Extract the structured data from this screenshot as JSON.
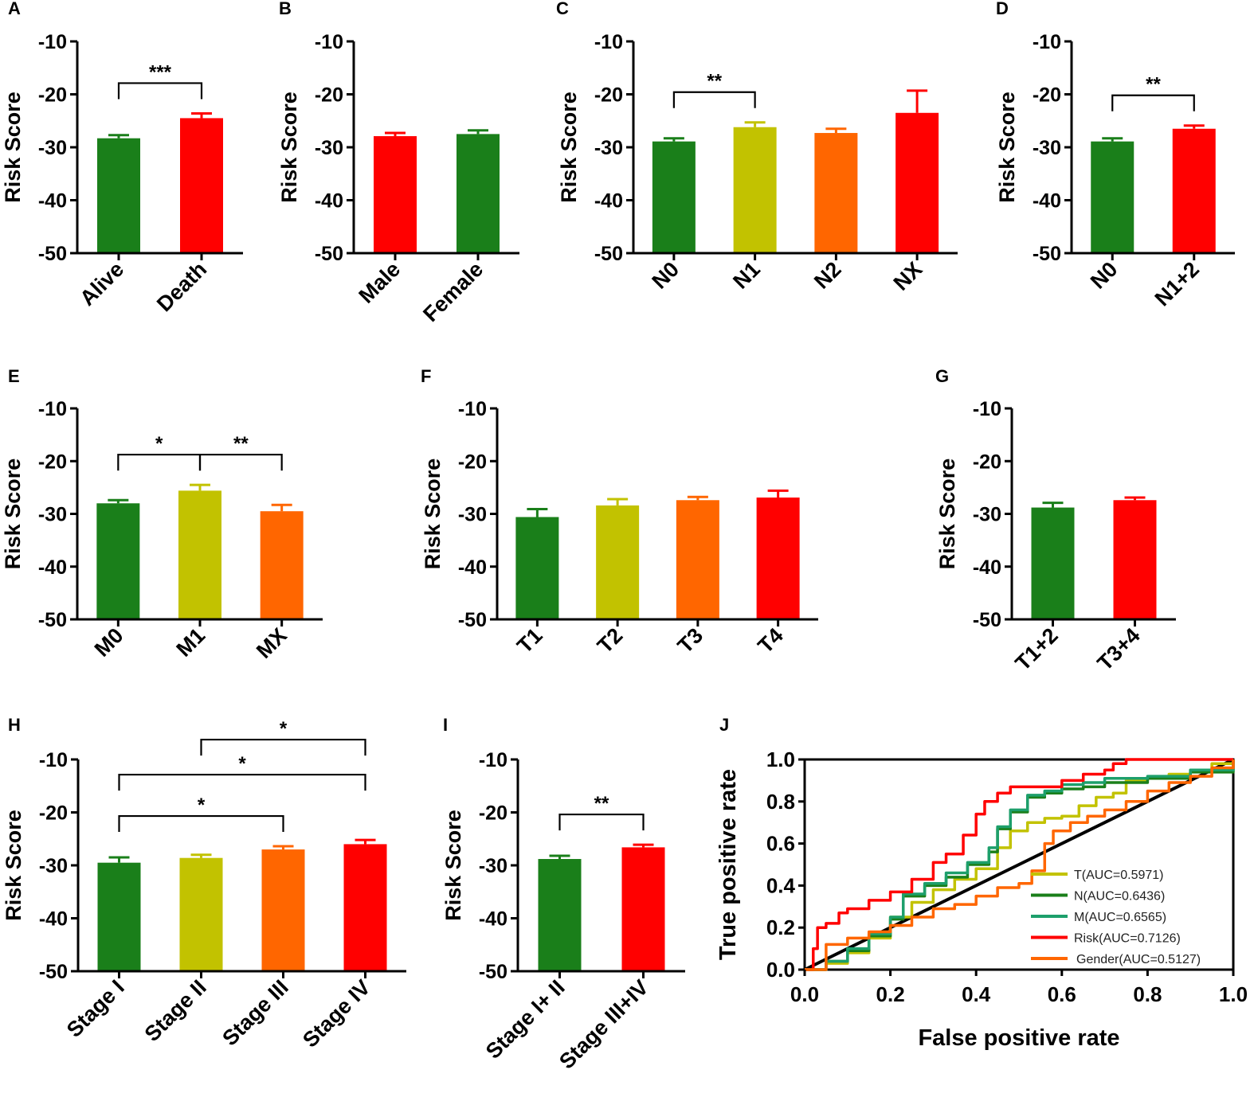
{
  "figure": {
    "panel_count": 10
  },
  "colors": {
    "green": "#1a7f1a",
    "olive": "#c2c200",
    "orange": "#ff6600",
    "red": "#ff0000",
    "teal": "#1d9f6b",
    "diag": "#000000"
  },
  "chart_data": [
    {
      "id": "A",
      "panel_label": "A",
      "type": "bar",
      "ylabel": "Risk Score",
      "ylim": [
        -50,
        -10
      ],
      "yticks": [
        -10,
        -20,
        -30,
        -40,
        -50
      ],
      "categories": [
        "Alive",
        "Death"
      ],
      "values": [
        -28.3,
        -24.5
      ],
      "errors": [
        0.6,
        0.9
      ],
      "bar_colors": [
        "#1a7f1a",
        "#ff0000"
      ],
      "comparisons": [
        {
          "from": 0,
          "to": 1,
          "label": "***",
          "level": 0
        }
      ]
    },
    {
      "id": "B",
      "panel_label": "B",
      "type": "bar",
      "ylabel": "Risk Score",
      "ylim": [
        -50,
        -10
      ],
      "yticks": [
        -10,
        -20,
        -30,
        -40,
        -50
      ],
      "categories": [
        "Male",
        "Female"
      ],
      "values": [
        -27.9,
        -27.5
      ],
      "errors": [
        0.6,
        0.7
      ],
      "bar_colors": [
        "#ff0000",
        "#1a7f1a"
      ],
      "comparisons": []
    },
    {
      "id": "C",
      "panel_label": "C",
      "type": "bar",
      "ylabel": "Risk Score",
      "ylim": [
        -50,
        -10
      ],
      "yticks": [
        -10,
        -20,
        -30,
        -40,
        -50
      ],
      "categories": [
        "N0",
        "N1",
        "N2",
        "NX"
      ],
      "values": [
        -28.9,
        -26.2,
        -27.3,
        -23.5
      ],
      "errors": [
        0.6,
        0.9,
        0.8,
        4.2
      ],
      "bar_colors": [
        "#1a7f1a",
        "#c2c200",
        "#ff6600",
        "#ff0000"
      ],
      "comparisons": [
        {
          "from": 0,
          "to": 1,
          "label": "**",
          "level": 0
        }
      ]
    },
    {
      "id": "D",
      "panel_label": "D",
      "type": "bar",
      "ylabel": "Risk Score",
      "ylim": [
        -50,
        -10
      ],
      "yticks": [
        -10,
        -20,
        -30,
        -40,
        -50
      ],
      "categories": [
        "N0",
        "N1+2"
      ],
      "values": [
        -28.9,
        -26.5
      ],
      "errors": [
        0.6,
        0.6
      ],
      "bar_colors": [
        "#1a7f1a",
        "#ff0000"
      ],
      "comparisons": [
        {
          "from": 0,
          "to": 1,
          "label": "**",
          "level": 0
        }
      ]
    },
    {
      "id": "E",
      "panel_label": "E",
      "type": "bar",
      "ylabel": "Risk Score",
      "ylim": [
        -50,
        -10
      ],
      "yticks": [
        -10,
        -20,
        -30,
        -40,
        -50
      ],
      "categories": [
        "M0",
        "M1",
        "MX"
      ],
      "values": [
        -28.0,
        -25.6,
        -29.5
      ],
      "errors": [
        0.6,
        1.1,
        1.2
      ],
      "bar_colors": [
        "#1a7f1a",
        "#c2c200",
        "#ff6600"
      ],
      "comparisons": [
        {
          "from": 0,
          "to": 1,
          "label": "*",
          "level": 0
        },
        {
          "from": 1,
          "to": 2,
          "label": "**",
          "level": 0
        }
      ]
    },
    {
      "id": "F",
      "panel_label": "F",
      "type": "bar",
      "ylabel": "Risk Score",
      "ylim": [
        -50,
        -10
      ],
      "yticks": [
        -10,
        -20,
        -30,
        -40,
        -50
      ],
      "categories": [
        "T1",
        "T2",
        "T3",
        "T4"
      ],
      "values": [
        -30.6,
        -28.4,
        -27.4,
        -26.9
      ],
      "errors": [
        1.5,
        1.2,
        0.6,
        1.3
      ],
      "bar_colors": [
        "#1a7f1a",
        "#c2c200",
        "#ff6600",
        "#ff0000"
      ],
      "comparisons": []
    },
    {
      "id": "G",
      "panel_label": "G",
      "type": "bar",
      "ylabel": "Risk Score",
      "ylim": [
        -50,
        -10
      ],
      "yticks": [
        -10,
        -20,
        -30,
        -40,
        -50
      ],
      "categories": [
        "T1+2",
        "T3+4"
      ],
      "values": [
        -28.8,
        -27.4
      ],
      "errors": [
        0.9,
        0.5
      ],
      "bar_colors": [
        "#1a7f1a",
        "#ff0000"
      ],
      "comparisons": []
    },
    {
      "id": "H",
      "panel_label": "H",
      "type": "bar",
      "ylabel": "Risk Score",
      "ylim": [
        -50,
        -10
      ],
      "yticks": [
        -10,
        -20,
        -30,
        -40,
        -50
      ],
      "categories": [
        "Stage I",
        "Stage II",
        "Stage III",
        "Stage IV"
      ],
      "values": [
        -29.5,
        -28.6,
        -27.0,
        -26.0
      ],
      "errors": [
        1.0,
        0.6,
        0.6,
        0.8
      ],
      "bar_colors": [
        "#1a7f1a",
        "#c2c200",
        "#ff6600",
        "#ff0000"
      ],
      "comparisons": [
        {
          "from": 0,
          "to": 2,
          "label": "*",
          "level": 0
        },
        {
          "from": 0,
          "to": 3,
          "label": "*",
          "level": 1
        },
        {
          "from": 1,
          "to": 3,
          "label": "*",
          "level": 2
        }
      ]
    },
    {
      "id": "I",
      "panel_label": "I",
      "type": "bar",
      "ylabel": "Risk Score",
      "ylim": [
        -50,
        -10
      ],
      "yticks": [
        -10,
        -20,
        -30,
        -40,
        -50
      ],
      "categories": [
        "Stage I+ II",
        "Stage III+IV"
      ],
      "values": [
        -28.8,
        -26.6
      ],
      "errors": [
        0.6,
        0.5
      ],
      "bar_colors": [
        "#1a7f1a",
        "#ff0000"
      ],
      "comparisons": [
        {
          "from": 0,
          "to": 1,
          "label": "**",
          "level": 0
        }
      ]
    },
    {
      "id": "J",
      "panel_label": "J",
      "type": "line",
      "title": "",
      "xlabel": "False positive rate",
      "ylabel": "True positive rate",
      "xlim": [
        0,
        1
      ],
      "ylim": [
        0,
        1
      ],
      "xticks": [
        0.0,
        0.2,
        0.4,
        0.6,
        0.8,
        1.0
      ],
      "yticks": [
        0.0,
        0.2,
        0.4,
        0.6,
        0.8,
        1.0
      ],
      "legend_position": "bottom-right",
      "series": [
        {
          "name": "T(AUC=0.5971)",
          "color": "#c2c200",
          "x": [
            0,
            0.05,
            0.1,
            0.15,
            0.2,
            0.25,
            0.3,
            0.35,
            0.4,
            0.45,
            0.48,
            0.52,
            0.56,
            0.6,
            0.64,
            0.68,
            0.72,
            0.75,
            0.8,
            0.85,
            0.9,
            0.95,
            1.0
          ],
          "y": [
            0,
            0.03,
            0.08,
            0.15,
            0.25,
            0.32,
            0.38,
            0.43,
            0.48,
            0.58,
            0.66,
            0.7,
            0.72,
            0.73,
            0.78,
            0.82,
            0.84,
            0.9,
            0.91,
            0.93,
            0.95,
            0.98,
            1.0
          ]
        },
        {
          "name": "N(AUC=0.6436)",
          "color": "#1a7f1a",
          "x": [
            0,
            0.05,
            0.1,
            0.15,
            0.2,
            0.23,
            0.28,
            0.33,
            0.38,
            0.43,
            0.45,
            0.48,
            0.52,
            0.56,
            0.6,
            0.65,
            0.7,
            0.8,
            0.9,
            1.0
          ],
          "y": [
            0,
            0.04,
            0.09,
            0.16,
            0.24,
            0.35,
            0.4,
            0.44,
            0.5,
            0.56,
            0.67,
            0.75,
            0.82,
            0.84,
            0.86,
            0.87,
            0.89,
            0.91,
            0.94,
            1.0
          ]
        },
        {
          "name": "M(AUC=0.6565)",
          "color": "#1d9f6b",
          "x": [
            0,
            0.05,
            0.1,
            0.15,
            0.2,
            0.23,
            0.28,
            0.33,
            0.38,
            0.43,
            0.45,
            0.48,
            0.52,
            0.56,
            0.6,
            0.65,
            0.7,
            0.8,
            0.9,
            1.0
          ],
          "y": [
            0,
            0.04,
            0.1,
            0.17,
            0.25,
            0.36,
            0.41,
            0.46,
            0.51,
            0.58,
            0.68,
            0.76,
            0.83,
            0.85,
            0.88,
            0.89,
            0.91,
            0.92,
            0.95,
            1.0
          ]
        },
        {
          "name": "Risk(AUC=0.7126)",
          "color": "#ff0000",
          "x": [
            0,
            0.02,
            0.03,
            0.05,
            0.08,
            0.1,
            0.15,
            0.2,
            0.25,
            0.3,
            0.33,
            0.37,
            0.4,
            0.42,
            0.45,
            0.48,
            0.52,
            0.56,
            0.6,
            0.65,
            0.7,
            0.72,
            0.75,
            0.8,
            0.9,
            1.0
          ],
          "y": [
            0,
            0.1,
            0.2,
            0.22,
            0.27,
            0.29,
            0.33,
            0.37,
            0.43,
            0.51,
            0.55,
            0.64,
            0.74,
            0.8,
            0.84,
            0.87,
            0.87,
            0.87,
            0.9,
            0.93,
            0.95,
            0.98,
            1.0,
            1.0,
            1.0,
            1.0
          ]
        },
        {
          "name": "Gender(AUC=0.5127)",
          "color": "#ff6600",
          "x": [
            0,
            0.05,
            0.1,
            0.15,
            0.2,
            0.25,
            0.3,
            0.35,
            0.4,
            0.45,
            0.5,
            0.53,
            0.56,
            0.58,
            0.62,
            0.66,
            0.7,
            0.75,
            0.8,
            0.85,
            0.9,
            0.95,
            1.0
          ],
          "y": [
            0,
            0.12,
            0.15,
            0.18,
            0.21,
            0.25,
            0.29,
            0.31,
            0.35,
            0.39,
            0.41,
            0.47,
            0.6,
            0.66,
            0.7,
            0.73,
            0.76,
            0.8,
            0.85,
            0.89,
            0.92,
            0.96,
            1.0
          ]
        }
      ],
      "diagonal": true
    }
  ]
}
